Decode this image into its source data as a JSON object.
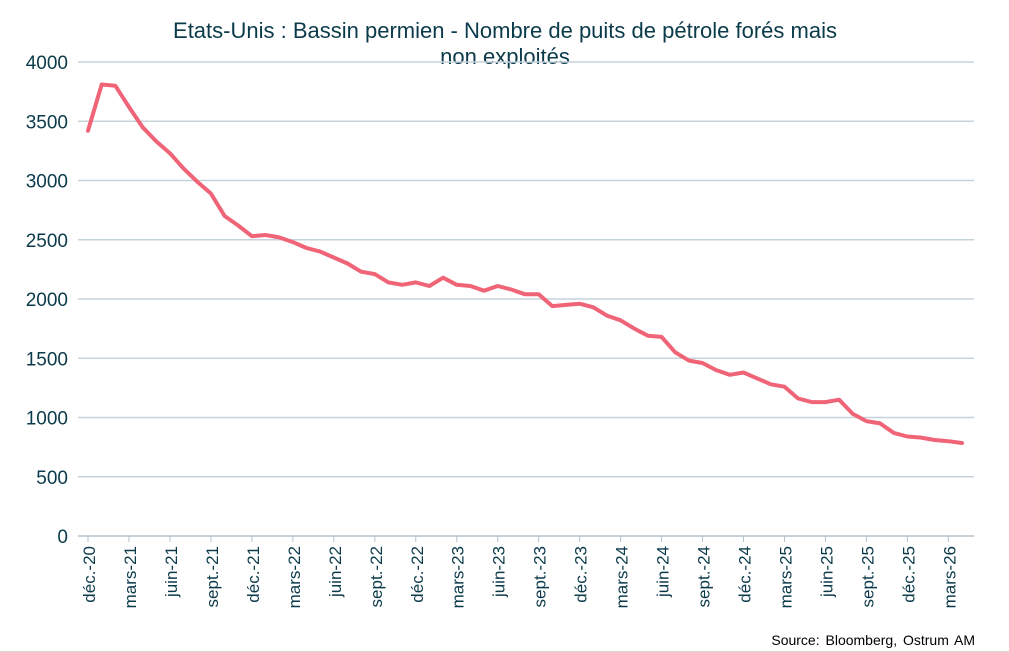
{
  "chart_data": {
    "type": "line",
    "title": "Etats-Unis : Bassin permien - Nombre de puits de pétrole forés mais\nnon exploités",
    "source": "Source: Bloomberg,  Ostrum  AM",
    "xlabel": "",
    "ylabel": "",
    "ylim": [
      0,
      4000
    ],
    "y_ticks": [
      0,
      500,
      1000,
      1500,
      2000,
      2500,
      3000,
      3500,
      4000
    ],
    "x_tick_labels": [
      "déc.-20",
      "mars-21",
      "juin-21",
      "sept.-21",
      "déc.-21",
      "mars-22",
      "juin-22",
      "sept.-22",
      "déc.-22",
      "mars-23",
      "juin-23",
      "sept.-23",
      "déc.-23",
      "mars-24",
      "juin-24",
      "sept.-24",
      "déc.-24",
      "mars-25",
      "juin-25",
      "sept.-25",
      "déc.-25",
      "mars-26"
    ],
    "grid": true,
    "legend": "none",
    "colors": {
      "line": "#f06477",
      "grid": "#c7d3db",
      "axis": "#b6c3cb",
      "text": "#0b3a4a"
    },
    "series": [
      {
        "values": [
          3420,
          3810,
          3800,
          3620,
          3450,
          3330,
          3230,
          3100,
          2990,
          2890,
          2700,
          2620,
          2530,
          2540,
          2520,
          2480,
          2430,
          2400,
          2350,
          2300,
          2230,
          2210,
          2140,
          2120,
          2140,
          2110,
          2180,
          2120,
          2110,
          2070,
          2110,
          2080,
          2040,
          2040,
          1940,
          1950,
          1960,
          1930,
          1860,
          1820,
          1750,
          1690,
          1680,
          1550,
          1480,
          1460,
          1400,
          1360,
          1380,
          1330,
          1280,
          1260,
          1160,
          1130,
          1130,
          1150,
          1030,
          970,
          950,
          870,
          840,
          830,
          810,
          800,
          785
        ]
      }
    ]
  }
}
